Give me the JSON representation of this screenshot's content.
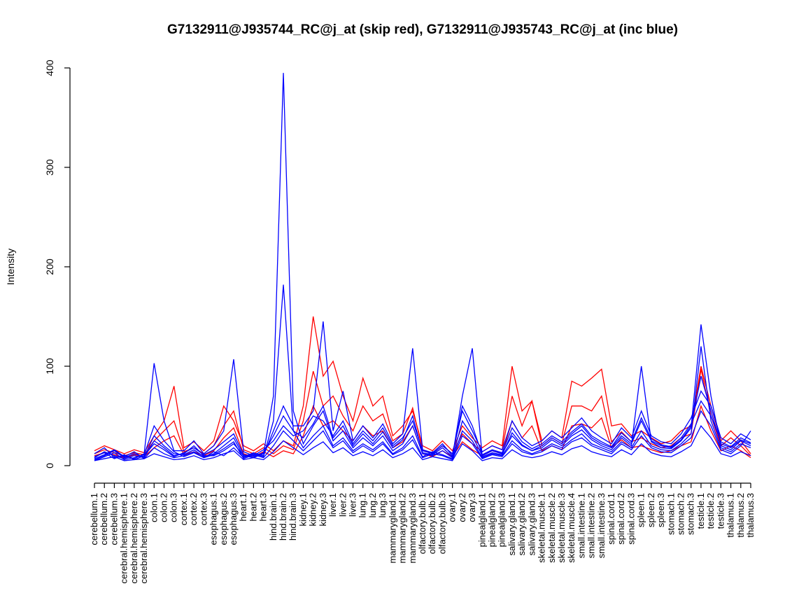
{
  "page": {
    "background": "#FFFFFF"
  },
  "chart_data": {
    "type": "line",
    "title": "G7132911@J935744_RC@j_at (skip red), G7132911@J935743_RC@j_at (inc blue)",
    "xlabel": "",
    "ylabel": "Intensity",
    "ylim": [
      0,
      400
    ],
    "yticks": [
      0,
      100,
      200,
      300,
      400
    ],
    "grid": false,
    "legend_position": "none",
    "series_colors": {
      "skip": "#FF0000",
      "inc": "#0000FF"
    },
    "categories": [
      "cerebellum.1",
      "cerebellum.2",
      "cerebellum.3",
      "cerebral.hemisphere.1",
      "cerebral.hemisphere.2",
      "cerebral.hemisphere.3",
      "colon.1",
      "colon.2",
      "colon.3",
      "cortex.1",
      "cortex.2",
      "cortex.3",
      "esophagus.1",
      "esophagus.2",
      "esophagus.3",
      "heart.1",
      "heart.2",
      "heart.3",
      "hind.brain.1",
      "hind.brain.2",
      "hind.brain.3",
      "kidney.1",
      "kidney.2",
      "kidney.3",
      "liver.1",
      "liver.2",
      "liver.3",
      "lung.1",
      "lung.2",
      "lung.3",
      "mammarygland.1",
      "mammarygland.2",
      "mammarygland.3",
      "olfactory.bulb.1",
      "olfactory.bulb.2",
      "olfactory.bulb.3",
      "ovary.1",
      "ovary.2",
      "ovary.3",
      "pinealgland.1",
      "pinealgland.2",
      "pinealgland.3",
      "salivary.gland.1",
      "salivary.gland.2",
      "salivary.gland.3",
      "skeletal.muscle.1",
      "skeletal.muscle.2",
      "skeletal.muscle.3",
      "skeletal.muscle.4",
      "small.intestine.1",
      "small.intestine.2",
      "small.intestine.3",
      "spinal.cord.1",
      "spinal.cord.2",
      "spinal.cord.3",
      "spleen.1",
      "spleen.2",
      "spleen.3",
      "stomach.1",
      "stomach.2",
      "stomach.3",
      "testicle.1",
      "testicle.2",
      "testicle.3",
      "thalamus.1",
      "thalamus.2",
      "thalamus.3"
    ],
    "series": [
      {
        "name": "skip.red.1",
        "color": "#FF0000",
        "values": [
          15,
          20,
          16,
          12,
          16,
          13,
          30,
          45,
          80,
          18,
          24,
          15,
          25,
          60,
          45,
          20,
          15,
          22,
          15,
          25,
          20,
          60,
          150,
          90,
          105,
          70,
          45,
          88,
          60,
          70,
          30,
          40,
          55,
          20,
          15,
          25,
          15,
          40,
          28,
          18,
          25,
          20,
          100,
          55,
          65,
          25,
          35,
          28,
          85,
          80,
          88,
          97,
          40,
          42,
          30,
          35,
          28,
          22,
          25,
          35,
          40,
          100,
          60,
          25,
          35,
          25,
          12
        ]
      },
      {
        "name": "skip.red.2",
        "color": "#FF0000",
        "values": [
          12,
          16,
          13,
          10,
          13,
          11,
          25,
          35,
          45,
          14,
          18,
          12,
          20,
          40,
          55,
          16,
          12,
          18,
          12,
          20,
          16,
          45,
          95,
          60,
          70,
          50,
          35,
          60,
          45,
          52,
          25,
          32,
          58,
          16,
          12,
          20,
          12,
          32,
          22,
          14,
          20,
          16,
          70,
          40,
          65,
          20,
          28,
          22,
          60,
          60,
          55,
          70,
          24,
          34,
          24,
          28,
          22,
          18,
          20,
          28,
          32,
          97,
          50,
          20,
          28,
          20,
          10
        ]
      },
      {
        "name": "skip.red.3",
        "color": "#FF0000",
        "values": [
          10,
          13,
          11,
          8,
          11,
          9,
          18,
          25,
          30,
          11,
          14,
          10,
          15,
          28,
          38,
          12,
          9,
          14,
          9,
          15,
          12,
          30,
          60,
          40,
          45,
          35,
          25,
          40,
          30,
          35,
          18,
          24,
          40,
          12,
          9,
          15,
          9,
          24,
          16,
          10,
          15,
          12,
          45,
          28,
          40,
          15,
          20,
          16,
          40,
          42,
          38,
          48,
          18,
          26,
          18,
          20,
          16,
          13,
          15,
          20,
          24,
          60,
          35,
          15,
          20,
          15,
          8
        ]
      },
      {
        "name": "inc.blue.1",
        "color": "#0000FF",
        "values": [
          8,
          14,
          10,
          7,
          10,
          8,
          25,
          18,
          10,
          12,
          20,
          10,
          10,
          15,
          22,
          10,
          8,
          12,
          70,
          395,
          55,
          22,
          40,
          55,
          25,
          35,
          18,
          28,
          20,
          30,
          15,
          22,
          40,
          12,
          10,
          15,
          8,
          45,
          30,
          10,
          15,
          12,
          30,
          20,
          15,
          20,
          28,
          22,
          32,
          40,
          28,
          22,
          18,
          30,
          22,
          45,
          25,
          20,
          18,
          26,
          40,
          90,
          55,
          22,
          18,
          26,
          22
        ]
      },
      {
        "name": "inc.blue.2",
        "color": "#0000FF",
        "values": [
          5,
          9,
          13,
          6,
          8,
          11,
          40,
          25,
          14,
          9,
          13,
          8,
          14,
          10,
          18,
          8,
          12,
          9,
          45,
          182,
          35,
          18,
          30,
          40,
          20,
          28,
          15,
          22,
          16,
          24,
          12,
          18,
          30,
          9,
          14,
          11,
          7,
          35,
          25,
          8,
          12,
          10,
          25,
          16,
          12,
          16,
          22,
          18,
          26,
          32,
          22,
          18,
          14,
          24,
          18,
          35,
          20,
          16,
          15,
          22,
          32,
          120,
          45,
          18,
          14,
          22,
          18
        ]
      },
      {
        "name": "inc.blue.3",
        "color": "#0000FF",
        "values": [
          12,
          18,
          8,
          10,
          7,
          12,
          103,
          45,
          15,
          15,
          25,
          12,
          20,
          35,
          107,
          14,
          10,
          16,
          25,
          40,
          30,
          35,
          50,
          45,
          30,
          45,
          22,
          35,
          25,
          38,
          20,
          28,
          45,
          15,
          12,
          20,
          12,
          55,
          35,
          14,
          20,
          16,
          45,
          28,
          20,
          25,
          35,
          28,
          38,
          48,
          35,
          28,
          22,
          38,
          28,
          55,
          30,
          24,
          22,
          32,
          48,
          75,
          60,
          28,
          22,
          32,
          26
        ]
      },
      {
        "name": "inc.blue.4",
        "color": "#0000FF",
        "values": [
          6,
          10,
          15,
          8,
          12,
          9,
          30,
          20,
          12,
          11,
          16,
          9,
          12,
          20,
          28,
          9,
          13,
          10,
          35,
          60,
          40,
          40,
          55,
          145,
          35,
          75,
          25,
          40,
          28,
          42,
          22,
          32,
          118,
          16,
          13,
          22,
          10,
          60,
          40,
          11,
          16,
          13,
          38,
          24,
          17,
          22,
          30,
          24,
          34,
          42,
          30,
          24,
          19,
          33,
          24,
          48,
          27,
          21,
          19,
          28,
          42,
          65,
          50,
          24,
          19,
          28,
          23
        ]
      },
      {
        "name": "inc.blue.5",
        "color": "#0000FF",
        "values": [
          9,
          13,
          7,
          11,
          6,
          10,
          22,
          16,
          9,
          13,
          18,
          11,
          16,
          24,
          32,
          11,
          9,
          13,
          30,
          50,
          35,
          28,
          42,
          60,
          28,
          40,
          20,
          32,
          22,
          34,
          18,
          26,
          50,
          13,
          11,
          18,
          9,
          70,
          118,
          9,
          13,
          11,
          33,
          21,
          15,
          18,
          26,
          20,
          30,
          36,
          26,
          20,
          16,
          28,
          20,
          100,
          24,
          18,
          17,
          25,
          38,
          142,
          70,
          20,
          16,
          25,
          20
        ]
      },
      {
        "name": "inc.blue.6",
        "color": "#0000FF",
        "values": [
          7,
          11,
          16,
          9,
          14,
          7,
          18,
          12,
          8,
          10,
          14,
          8,
          11,
          17,
          24,
          7,
          11,
          8,
          20,
          35,
          25,
          15,
          25,
          35,
          18,
          25,
          13,
          20,
          14,
          22,
          11,
          16,
          26,
          8,
          12,
          10,
          6,
          30,
          22,
          7,
          11,
          9,
          22,
          14,
          11,
          14,
          20,
          16,
          24,
          28,
          20,
          16,
          12,
          22,
          16,
          30,
          18,
          14,
          13,
          20,
          28,
          55,
          40,
          16,
          12,
          20,
          35
        ]
      },
      {
        "name": "inc.blue.7",
        "color": "#0000FF",
        "values": [
          5,
          7,
          9,
          5,
          6,
          7,
          12,
          9,
          6,
          7,
          10,
          6,
          8,
          12,
          15,
          6,
          8,
          6,
          14,
          25,
          18,
          11,
          18,
          24,
          13,
          18,
          10,
          14,
          10,
          16,
          8,
          12,
          18,
          6,
          9,
          7,
          5,
          22,
          15,
          5,
          8,
          7,
          16,
          10,
          8,
          10,
          14,
          11,
          17,
          20,
          14,
          11,
          9,
          16,
          11,
          22,
          13,
          10,
          9,
          14,
          20,
          40,
          28,
          12,
          9,
          14,
          10
        ]
      }
    ]
  }
}
